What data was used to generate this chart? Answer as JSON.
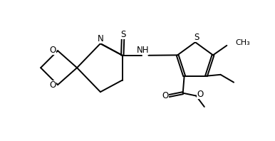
{
  "background_color": "#ffffff",
  "line_color": "#000000",
  "line_width": 1.4,
  "font_size": 8.5,
  "figsize": [
    3.86,
    1.98
  ],
  "dpi": 100,
  "xlim": [
    0,
    10
  ],
  "ylim": [
    0,
    5
  ]
}
